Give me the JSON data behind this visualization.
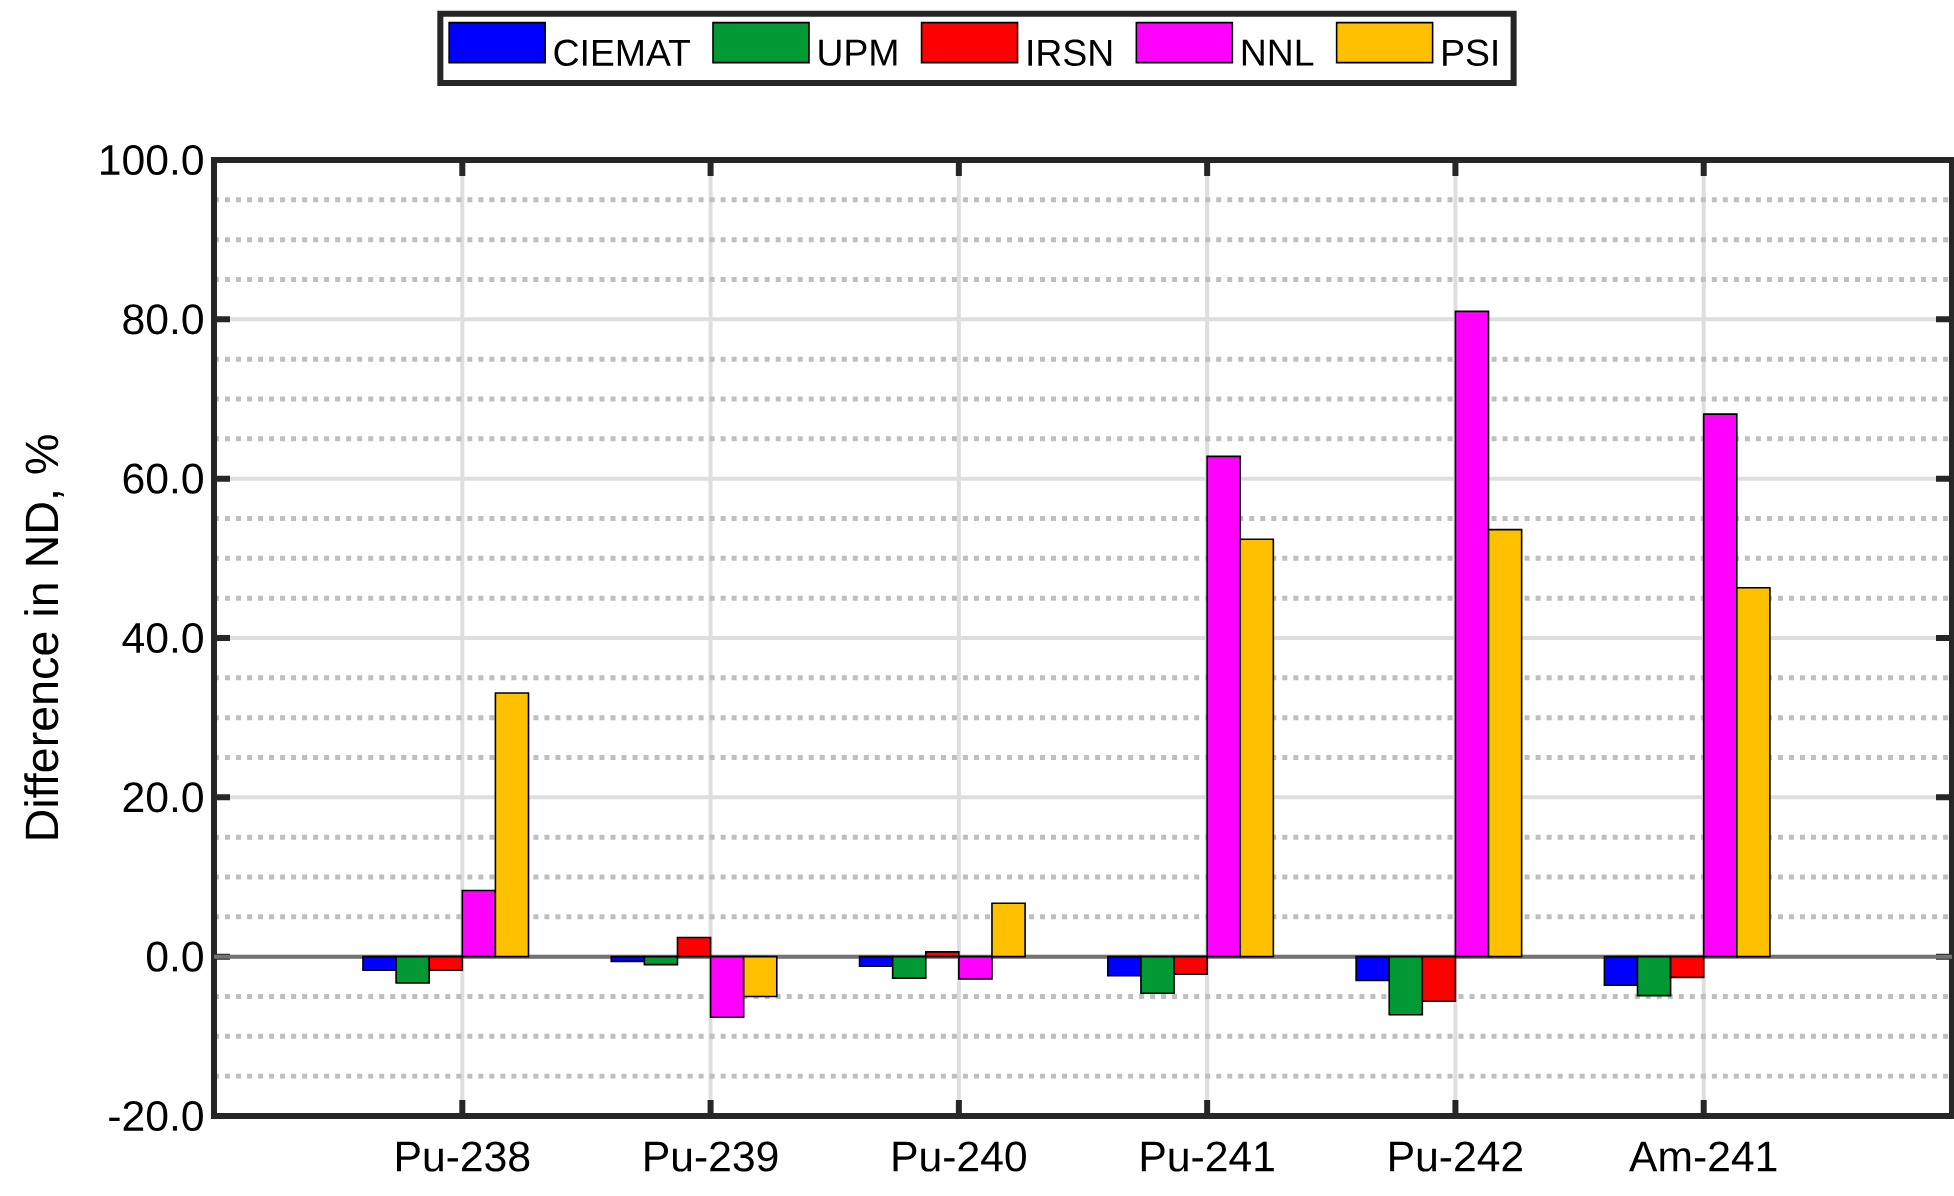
{
  "chart_data": {
    "type": "bar",
    "ylabel": "Difference in ND, %",
    "categories": [
      "Pu-238",
      "Pu-239",
      "Pu-240",
      "Pu-241",
      "Pu-242",
      "Am-241"
    ],
    "series": [
      {
        "name": "CIEMAT",
        "color": "#0000ff",
        "values": [
          -1.7,
          -0.6,
          -1.2,
          -2.4,
          -3.0,
          -3.6
        ]
      },
      {
        "name": "UPM",
        "color": "#009933",
        "values": [
          -3.3,
          -1.0,
          -2.7,
          -4.6,
          -7.3,
          -4.9
        ]
      },
      {
        "name": "IRSN",
        "color": "#ff0000",
        "values": [
          -1.7,
          2.4,
          0.6,
          -2.2,
          -5.6,
          -2.6
        ]
      },
      {
        "name": "NNL",
        "color": "#ff00ff",
        "values": [
          8.3,
          -7.6,
          -2.8,
          62.8,
          81.0,
          68.1
        ]
      },
      {
        "name": "PSI",
        "color": "#ffc000",
        "values": [
          33.1,
          -5.0,
          6.7,
          52.4,
          53.6,
          46.3
        ]
      }
    ],
    "ylim": [
      -20,
      100
    ],
    "yticks": [
      {
        "value": -20,
        "label": "-20.0"
      },
      {
        "value": 0,
        "label": "0.0"
      },
      {
        "value": 20,
        "label": "20.0"
      },
      {
        "value": 40,
        "label": "40.0"
      },
      {
        "value": 60,
        "label": "60.0"
      },
      {
        "value": 80,
        "label": "80.0"
      },
      {
        "value": 100,
        "label": "100.0"
      }
    ],
    "grid": true,
    "legend": "top"
  }
}
